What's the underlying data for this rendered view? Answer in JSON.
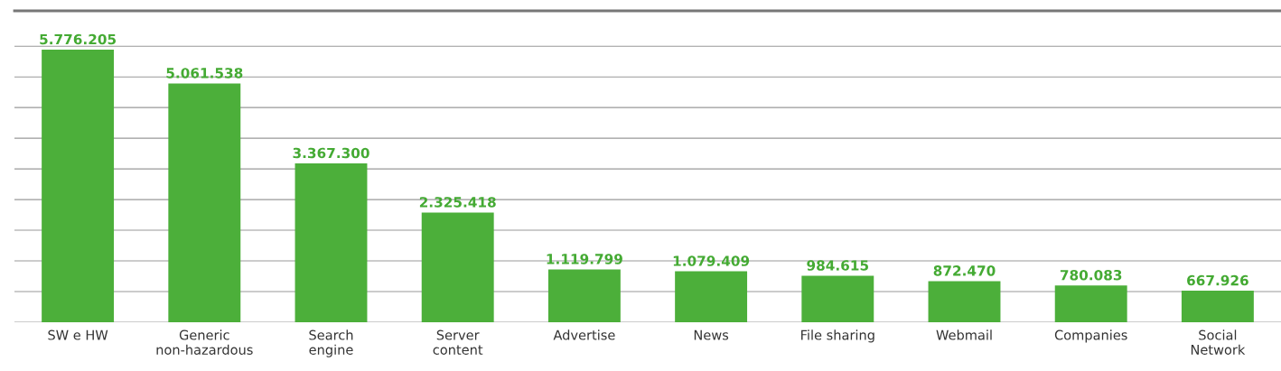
{
  "chart_data": {
    "type": "bar",
    "categories": [
      "SW e HW",
      "Generic\nnon-hazardous",
      "Search\nengine",
      "Server\ncontent",
      "Advertise",
      "News",
      "File sharing",
      "Webmail",
      "Companies",
      "Social\nNetwork"
    ],
    "values": [
      5776205,
      5061538,
      3367300,
      2325418,
      1119799,
      1079409,
      984615,
      872470,
      780083,
      667926
    ],
    "value_labels": [
      "5.776.205",
      "5.061.538",
      "3.367.300",
      "2.325.418",
      "1.119.799",
      "1.079.409",
      "984.615",
      "872.470",
      "780.083",
      "667.926"
    ],
    "color": "#4caf3a",
    "ylim": [
      0,
      6600000
    ],
    "yticks": [
      {
        "value": 0,
        "label": null
      },
      {
        "value": 650000,
        "label": null
      },
      {
        "value": 1300000,
        "label": null
      },
      {
        "value": 1950000,
        "label": null
      },
      {
        "value": 2600000,
        "label": null
      },
      {
        "value": 3250000,
        "label": null
      },
      {
        "value": 3900000,
        "label": null
      },
      {
        "value": 4550000,
        "label": null
      },
      {
        "value": 5200000,
        "label": null
      },
      {
        "value": 5850000,
        "label": null
      }
    ],
    "grid": "y"
  }
}
